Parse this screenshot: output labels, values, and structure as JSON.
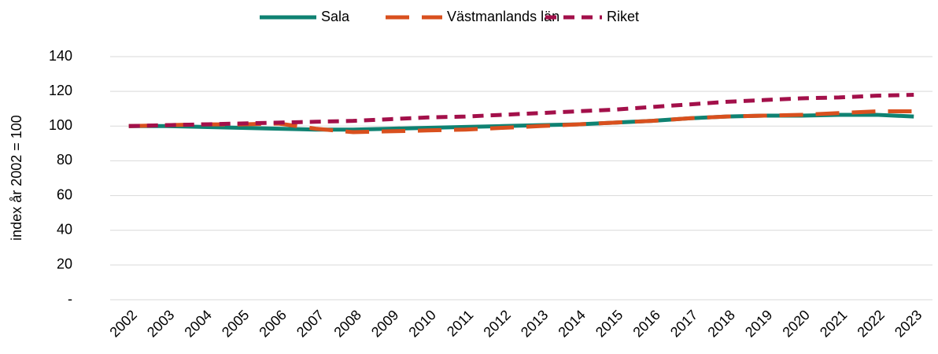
{
  "chart_data": {
    "type": "line",
    "y_label": "index år 2002 = 100",
    "categories": [
      "2002",
      "2003",
      "2004",
      "2005",
      "2006",
      "2007",
      "2008",
      "2009",
      "2010",
      "2011",
      "2012",
      "2013",
      "2014",
      "2015",
      "2016",
      "2017",
      "2018",
      "2019",
      "2020",
      "2021",
      "2022",
      "2023"
    ],
    "series": [
      {
        "name": "Sala",
        "color": "#0f8272",
        "dash": "solid",
        "values": [
          100,
          100,
          99.5,
          99,
          98.5,
          98,
          98,
          98.5,
          99,
          99.5,
          100,
          100.5,
          101,
          102,
          103,
          104.5,
          105.5,
          106,
          106,
          106.5,
          106.5,
          105.5
        ]
      },
      {
        "name": "Västmanlands län",
        "color": "#d9501e",
        "dash": "long",
        "values": [
          100,
          100.5,
          101,
          101,
          101.5,
          98.5,
          96.5,
          97,
          97.5,
          98,
          99,
          100,
          101,
          102,
          103,
          104.5,
          105.5,
          106,
          106.5,
          107.5,
          108.5,
          108.5
        ]
      },
      {
        "name": "Riket",
        "color": "#a3104a",
        "dash": "short",
        "values": [
          100,
          100.5,
          101,
          101.5,
          102,
          102.5,
          103,
          104,
          105,
          105.5,
          106.5,
          107.5,
          108.5,
          109.5,
          111,
          112.5,
          114,
          115,
          116,
          116.5,
          117.5,
          118
        ]
      }
    ],
    "ylim": [
      0,
      140
    ],
    "yticks": [
      {
        "value": 0,
        "label": "-"
      },
      20,
      40,
      60,
      80,
      100,
      120,
      140
    ],
    "grid": true,
    "legend": "top"
  }
}
